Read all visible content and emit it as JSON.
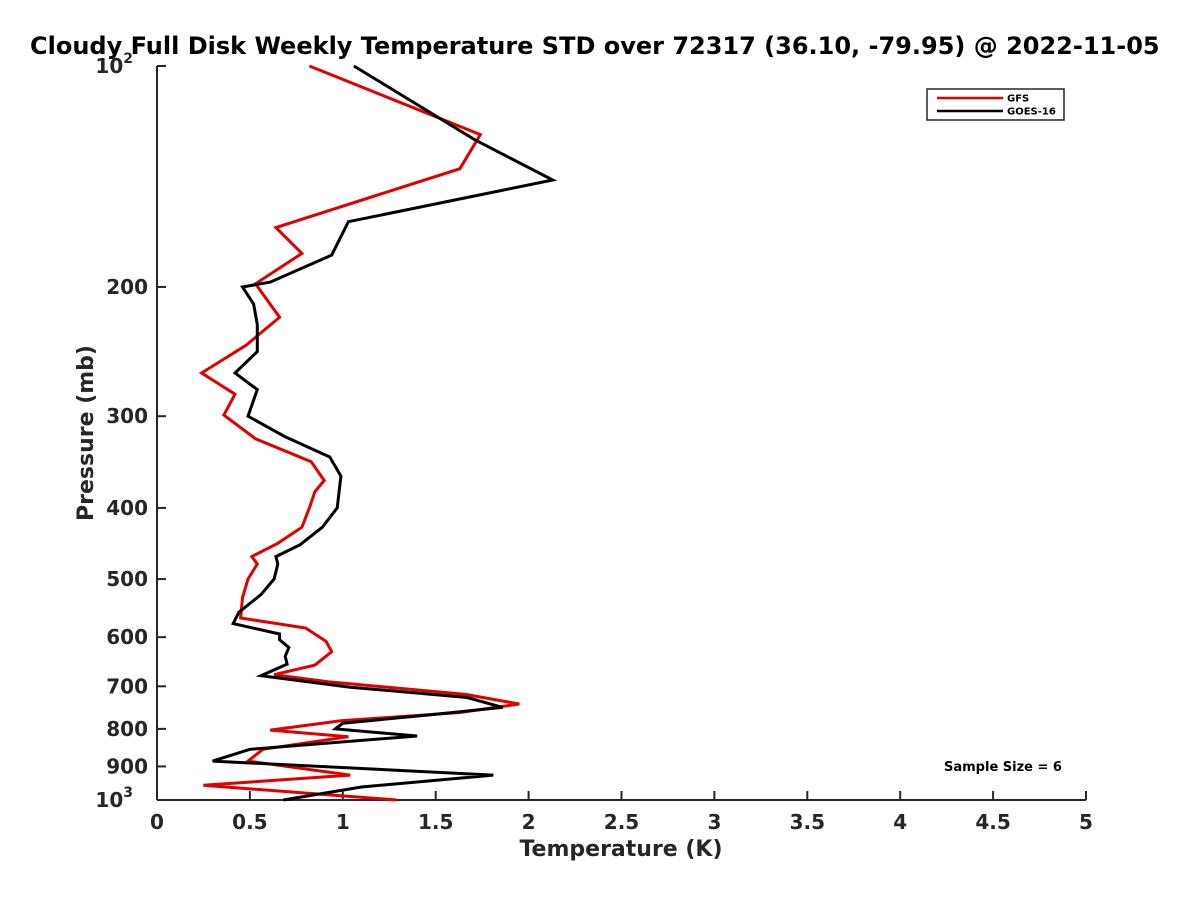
{
  "chart_data": {
    "type": "line",
    "title": "Cloudy Full Disk Weekly Temperature STD over 72317 (36.10, -79.95) @ 2022-11-05",
    "xlabel": "Temperature (K)",
    "ylabel": "Pressure (mb)",
    "xlim": [
      0,
      5
    ],
    "ylim": [
      100,
      1000
    ],
    "y_scale": "log",
    "y_reversed": true,
    "grid": false,
    "legend_position": "top-right",
    "x_ticks": [
      "0",
      "0.5",
      "1",
      "1.5",
      "2",
      "2.5",
      "3",
      "3.5",
      "4",
      "4.5",
      "5"
    ],
    "y_ticks": [
      {
        "value": 100,
        "label": "10",
        "sup": "2"
      },
      {
        "value": 200,
        "label": "200",
        "sup": ""
      },
      {
        "value": 300,
        "label": "300",
        "sup": ""
      },
      {
        "value": 400,
        "label": "400",
        "sup": ""
      },
      {
        "value": 500,
        "label": "500",
        "sup": ""
      },
      {
        "value": 600,
        "label": "600",
        "sup": ""
      },
      {
        "value": 700,
        "label": "700",
        "sup": ""
      },
      {
        "value": 800,
        "label": "800",
        "sup": ""
      },
      {
        "value": 900,
        "label": "900",
        "sup": ""
      },
      {
        "value": 1000,
        "label": "10",
        "sup": "3"
      }
    ],
    "annotation": "Sample Size = 6",
    "series": [
      {
        "name": "GFS",
        "color": "#e00000",
        "points": [
          [
            0.82,
            100
          ],
          [
            1.74,
            124
          ],
          [
            1.63,
            138
          ],
          [
            0.64,
            166
          ],
          [
            0.78,
            180
          ],
          [
            0.53,
            198
          ],
          [
            0.66,
            220
          ],
          [
            0.48,
            240
          ],
          [
            0.24,
            262
          ],
          [
            0.42,
            280
          ],
          [
            0.36,
            299
          ],
          [
            0.53,
            322
          ],
          [
            0.83,
            346
          ],
          [
            0.9,
            367
          ],
          [
            0.85,
            380
          ],
          [
            0.82,
            400
          ],
          [
            0.78,
            425
          ],
          [
            0.65,
            447
          ],
          [
            0.51,
            466
          ],
          [
            0.54,
            477
          ],
          [
            0.49,
            500
          ],
          [
            0.46,
            530
          ],
          [
            0.45,
            565
          ],
          [
            0.8,
            583
          ],
          [
            0.91,
            608
          ],
          [
            0.94,
            628
          ],
          [
            0.85,
            655
          ],
          [
            0.63,
            675
          ],
          [
            0.92,
            690
          ],
          [
            1.66,
            718
          ],
          [
            1.95,
            740
          ],
          [
            1.63,
            760
          ],
          [
            0.99,
            780
          ],
          [
            0.61,
            803
          ],
          [
            1.03,
            820
          ],
          [
            0.57,
            853
          ],
          [
            0.49,
            885
          ],
          [
            1.04,
            925
          ],
          [
            0.25,
            955
          ],
          [
            1.29,
            1000
          ]
        ]
      },
      {
        "name": "GOES-16",
        "color": "#000000",
        "points": [
          [
            1.06,
            100
          ],
          [
            1.71,
            126
          ],
          [
            2.13,
            143
          ],
          [
            1.03,
            163
          ],
          [
            0.94,
            181
          ],
          [
            0.61,
            197
          ],
          [
            0.46,
            200
          ],
          [
            0.52,
            211
          ],
          [
            0.54,
            225
          ],
          [
            0.54,
            245
          ],
          [
            0.42,
            262
          ],
          [
            0.54,
            276
          ],
          [
            0.49,
            300
          ],
          [
            0.69,
            320
          ],
          [
            0.93,
            341
          ],
          [
            0.99,
            362
          ],
          [
            0.98,
            380
          ],
          [
            0.97,
            400
          ],
          [
            0.89,
            425
          ],
          [
            0.77,
            449
          ],
          [
            0.64,
            466
          ],
          [
            0.65,
            477
          ],
          [
            0.63,
            500
          ],
          [
            0.56,
            525
          ],
          [
            0.44,
            555
          ],
          [
            0.41,
            575
          ],
          [
            0.66,
            594
          ],
          [
            0.66,
            605
          ],
          [
            0.71,
            620
          ],
          [
            0.69,
            637
          ],
          [
            0.7,
            653
          ],
          [
            0.56,
            677
          ],
          [
            1.04,
            702
          ],
          [
            1.67,
            725
          ],
          [
            1.86,
            748
          ],
          [
            1.46,
            766
          ],
          [
            1.0,
            786
          ],
          [
            0.96,
            800
          ],
          [
            1.4,
            818
          ],
          [
            0.5,
            853
          ],
          [
            0.3,
            885
          ],
          [
            1.81,
            925
          ],
          [
            1.1,
            960
          ],
          [
            0.68,
            1000
          ]
        ]
      }
    ]
  }
}
